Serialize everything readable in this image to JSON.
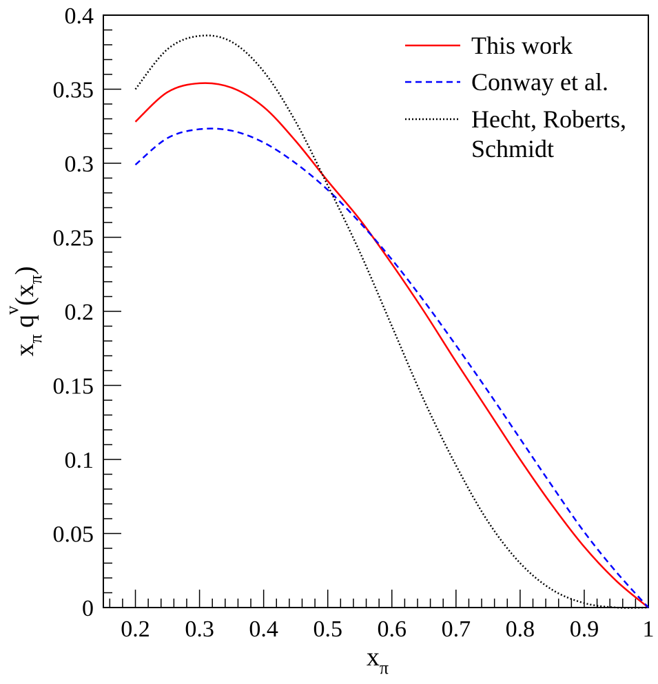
{
  "chart_data": {
    "type": "line",
    "xlabel": {
      "main": "x",
      "sub": "π"
    },
    "ylabel": {
      "a": "x",
      "a_sub": "π",
      "b": "q",
      "b_sup": "v",
      "c": "(x",
      "c_sub": "π",
      "d": ")"
    },
    "xlim": [
      0.15,
      1.0
    ],
    "ylim": [
      0,
      0.4
    ],
    "x_ticks": [
      "0.2",
      "0.3",
      "0.4",
      "0.5",
      "0.6",
      "0.7",
      "0.8",
      "0.9",
      "1"
    ],
    "y_ticks": [
      "0",
      "0.05",
      "0.1",
      "0.15",
      "0.2",
      "0.25",
      "0.3",
      "0.35",
      "0.4"
    ],
    "grid": false,
    "legend_position": "top-right",
    "series": [
      {
        "name": "This work",
        "color": "#ff0000",
        "style": "solid",
        "x": [
          0.2,
          0.25,
          0.3,
          0.35,
          0.4,
          0.45,
          0.5,
          0.55,
          0.6,
          0.65,
          0.7,
          0.75,
          0.8,
          0.85,
          0.9,
          0.95,
          1.0
        ],
        "y": [
          0.328,
          0.348,
          0.354,
          0.351,
          0.338,
          0.315,
          0.288,
          0.262,
          0.232,
          0.2,
          0.166,
          0.133,
          0.1,
          0.069,
          0.041,
          0.018,
          0.0
        ]
      },
      {
        "name": "Conway et al.",
        "color": "#0000ff",
        "style": "dashed",
        "x": [
          0.2,
          0.25,
          0.3,
          0.35,
          0.4,
          0.45,
          0.5,
          0.55,
          0.6,
          0.65,
          0.7,
          0.75,
          0.8,
          0.85,
          0.9,
          0.95,
          1.0
        ],
        "y": [
          0.299,
          0.317,
          0.323,
          0.322,
          0.314,
          0.3,
          0.282,
          0.26,
          0.235,
          0.207,
          0.177,
          0.146,
          0.114,
          0.082,
          0.051,
          0.024,
          0.0
        ]
      },
      {
        "name": "Hecht, Roberts,\nSchmidt",
        "color": "#000000",
        "style": "dotted",
        "x": [
          0.2,
          0.25,
          0.3,
          0.35,
          0.4,
          0.45,
          0.5,
          0.55,
          0.6,
          0.65,
          0.7,
          0.75,
          0.8,
          0.85,
          0.9,
          0.95,
          1.0
        ],
        "y": [
          0.35,
          0.377,
          0.386,
          0.382,
          0.362,
          0.328,
          0.285,
          0.24,
          0.19,
          0.14,
          0.096,
          0.058,
          0.03,
          0.012,
          0.003,
          0.0,
          0.0
        ]
      }
    ]
  }
}
